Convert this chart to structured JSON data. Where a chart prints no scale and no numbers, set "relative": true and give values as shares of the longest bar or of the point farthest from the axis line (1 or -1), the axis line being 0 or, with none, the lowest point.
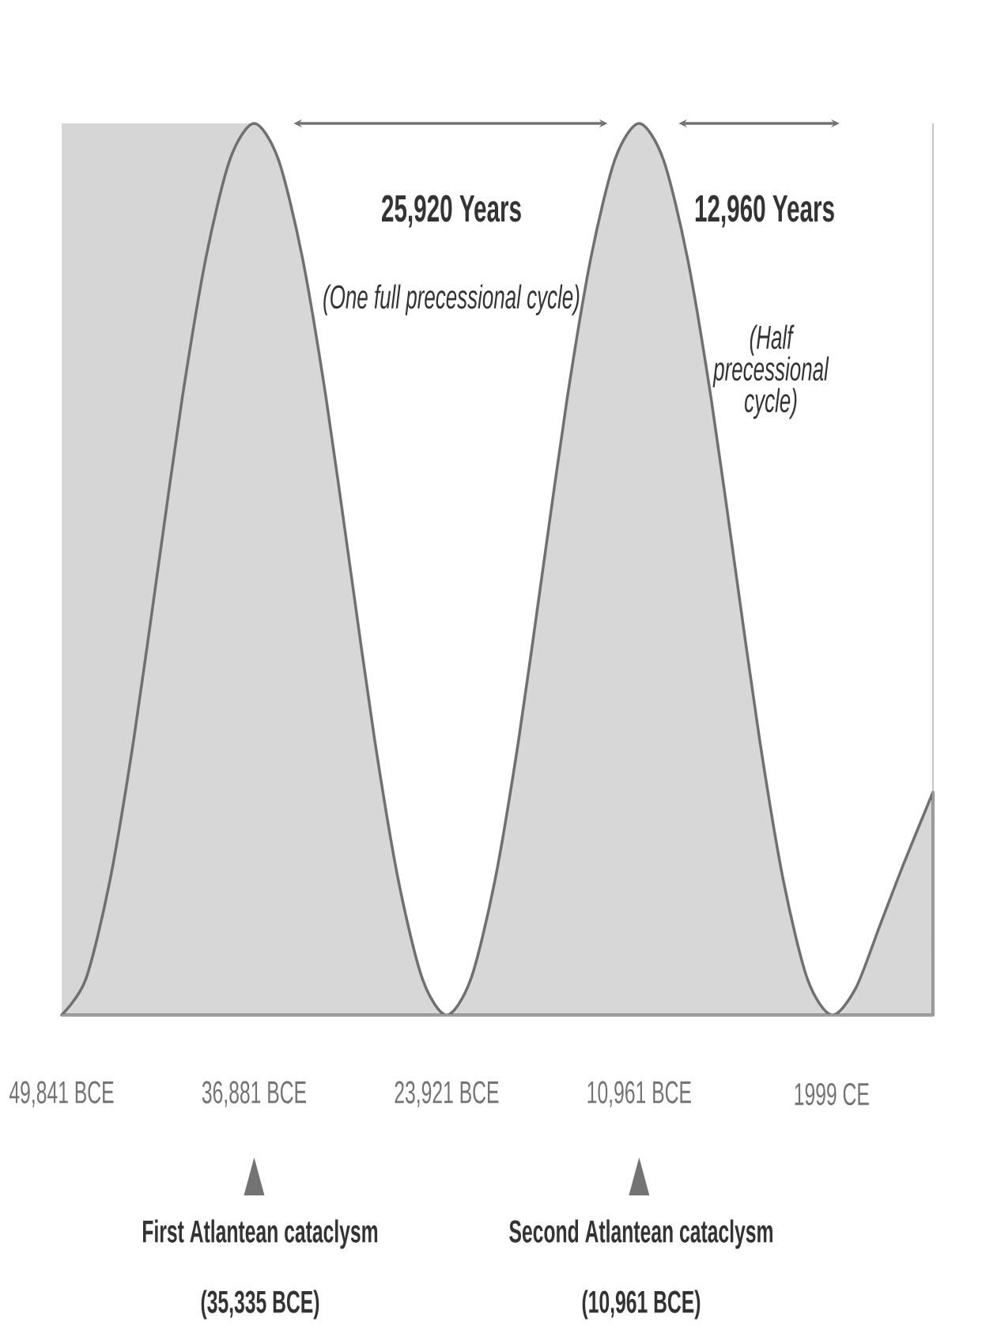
{
  "chart_data": {
    "type": "area",
    "relative": true,
    "x": [
      -49841,
      -48221,
      -46601,
      -44981,
      -43361,
      -41741,
      -40121,
      -38501,
      -36881,
      -35261,
      -33641,
      -32021,
      -30401,
      -28781,
      -27161,
      -25541,
      -23921,
      -22301,
      -20681,
      -19061,
      -17441,
      -15821,
      -14201,
      -12581,
      -10961,
      -9341,
      -7721,
      -6101,
      -4481,
      -2861,
      -1241,
      379,
      1999,
      3619,
      5239,
      6859,
      8823
    ],
    "series": [
      {
        "color": "#707070",
        "values": [
          0,
          0.04,
          0.15,
          0.31,
          0.5,
          0.69,
          0.85,
          0.96,
          1,
          0.96,
          0.85,
          0.69,
          0.5,
          0.31,
          0.15,
          0.04,
          0,
          0.04,
          0.15,
          0.31,
          0.5,
          0.69,
          0.85,
          0.96,
          1,
          0.96,
          0.85,
          0.69,
          0.5,
          0.31,
          0.15,
          0.04,
          0,
          0.03,
          0.1,
          0.17,
          0.25
        ]
      }
    ],
    "xlim": [
      -49841,
      8823
    ],
    "xticks": [
      {
        "value": -49841,
        "label": "49,841 BCE"
      },
      {
        "value": -36881,
        "label": "36,881 BCE"
      },
      {
        "value": -23921,
        "label": "23,921 BCE"
      },
      {
        "value": -10961,
        "label": "10,961 BCE"
      },
      {
        "value": 1999,
        "label": "1999 CE"
      }
    ],
    "bands": [
      {
        "axis": "x",
        "from": -49841,
        "to": -36881,
        "color": "#d6d6d6"
      }
    ],
    "annotations": [
      "25,920 Years",
      "(One full precessional cycle)",
      "12,960 Years",
      "(Half precessional cycle)",
      "First Atlantean cataclysm",
      "(35,335 BCE)",
      "Second Atlantean cataclysm",
      "(10,961 BCE)"
    ]
  }
}
